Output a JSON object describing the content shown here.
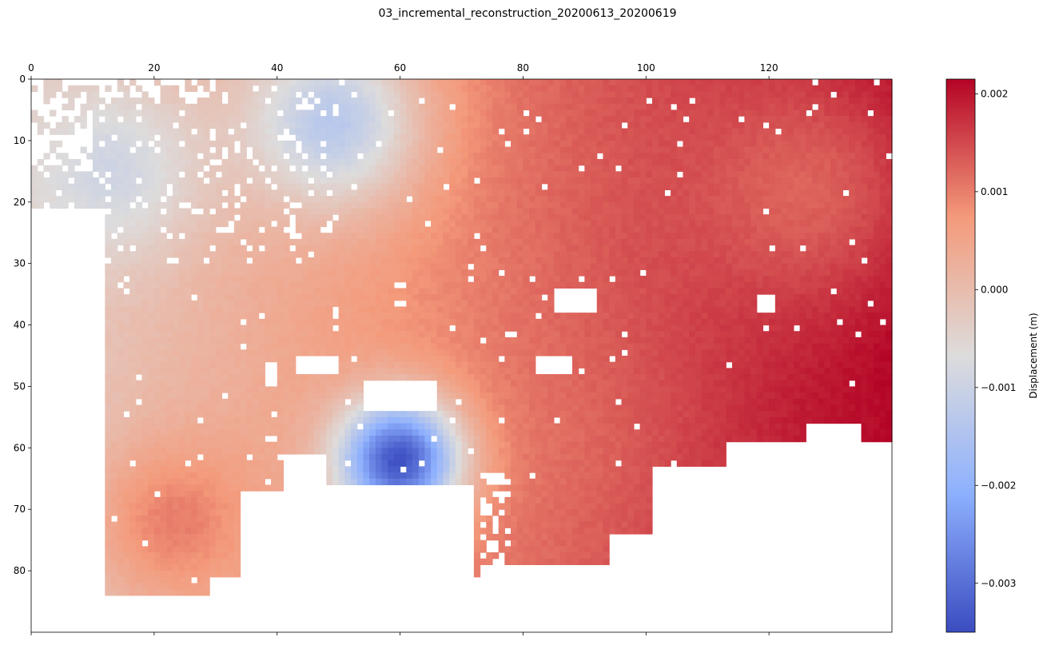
{
  "chart_data": {
    "type": "heatmap",
    "title": "03_incremental_reconstruction_20200613_20200619",
    "xlabel": "",
    "ylabel": "",
    "x_range": [
      0,
      140
    ],
    "y_range": [
      0,
      90
    ],
    "x_axis_position": "top",
    "y_axis_inverted": true,
    "x_ticks": [
      0,
      20,
      40,
      60,
      80,
      100,
      120
    ],
    "y_ticks": [
      0,
      10,
      20,
      30,
      40,
      50,
      60,
      70,
      80
    ],
    "grid": false,
    "colormap": "coolwarm",
    "colormap_colors": [
      "#3b4cc0",
      "#8db0fe",
      "#dddcdc",
      "#f49a7b",
      "#b40426"
    ],
    "nodata_color": "#ffffff",
    "colorbar": {
      "label": "Displacement (m)",
      "vmin": -0.0035,
      "vmax": 0.00215,
      "ticks": [
        -0.003,
        -0.002,
        -0.001,
        0.0,
        0.001,
        0.002
      ],
      "tick_labels": [
        "−0.003",
        "−0.002",
        "−0.001",
        "0.000",
        "0.001",
        "0.002"
      ],
      "placement": "right"
    },
    "features": [
      {
        "x": 60,
        "y": 62,
        "value": -0.0034,
        "sigma": 7
      },
      {
        "x": 50,
        "y": 7,
        "value": -0.0013,
        "sigma": 10
      },
      {
        "x": 15,
        "y": 15,
        "value": -0.0009,
        "sigma": 10
      },
      {
        "x": 130,
        "y": 18,
        "value": 0.0013,
        "sigma": 14
      },
      {
        "x": 138,
        "y": 56,
        "value": 0.0021,
        "sigma": 5
      },
      {
        "x": 95,
        "y": 58,
        "value": 0.0013,
        "sigma": 12
      },
      {
        "x": 22,
        "y": 72,
        "value": 0.001,
        "sigma": 9
      }
    ]
  }
}
